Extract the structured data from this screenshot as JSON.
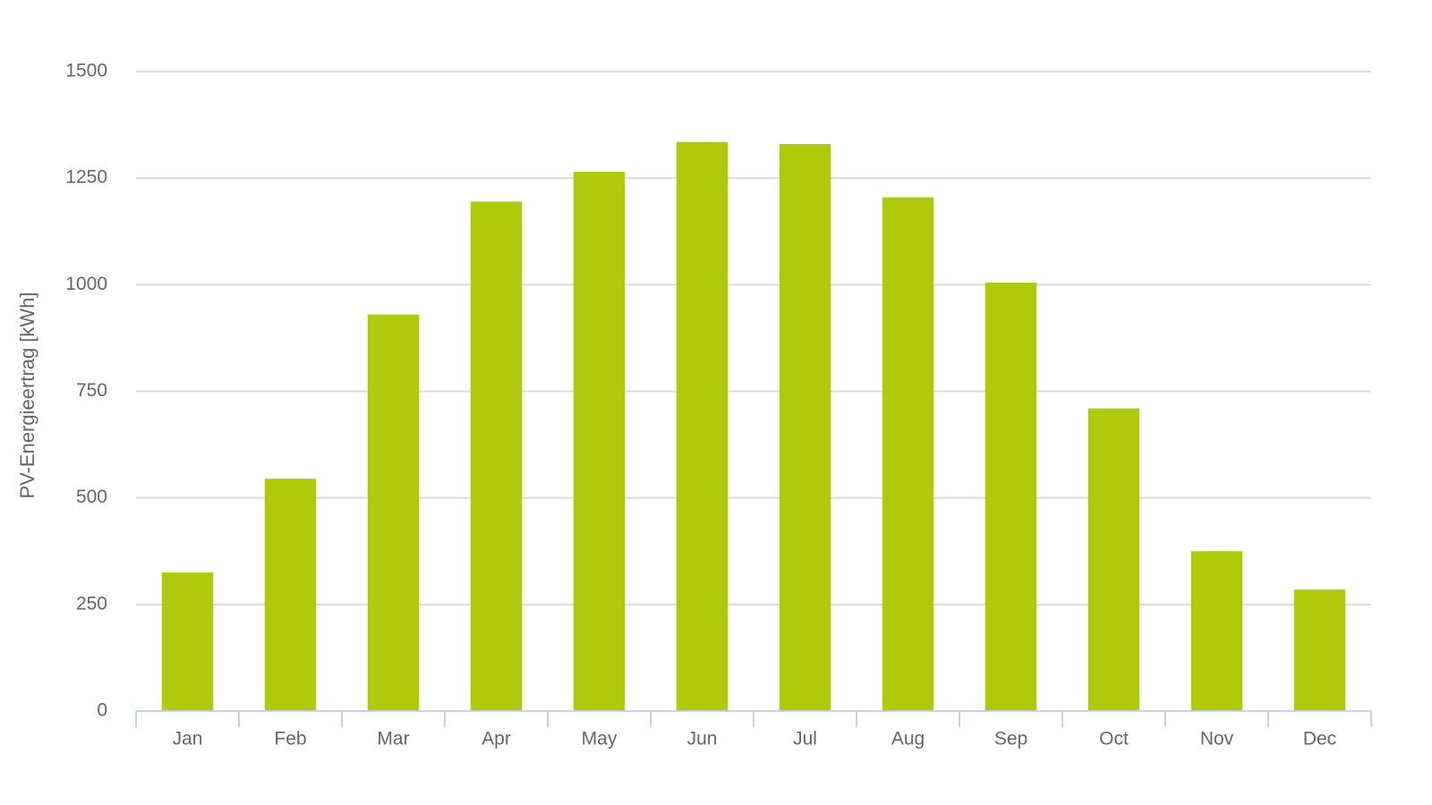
{
  "chart_data": {
    "type": "bar",
    "y_axis_label": "PV-Energieertrag [kWh]",
    "categories": [
      "Jan",
      "Feb",
      "Mar",
      "Apr",
      "May",
      "Jun",
      "Jul",
      "Aug",
      "Sep",
      "Oct",
      "Nov",
      "Dec"
    ],
    "values": [
      325,
      545,
      930,
      1195,
      1265,
      1335,
      1330,
      1205,
      1005,
      710,
      375,
      285
    ],
    "color": "#b0c90a",
    "ylim": [
      0,
      1500
    ],
    "yticks": [
      0,
      250,
      500,
      750,
      1000,
      1250,
      1500
    ],
    "grid": true
  }
}
